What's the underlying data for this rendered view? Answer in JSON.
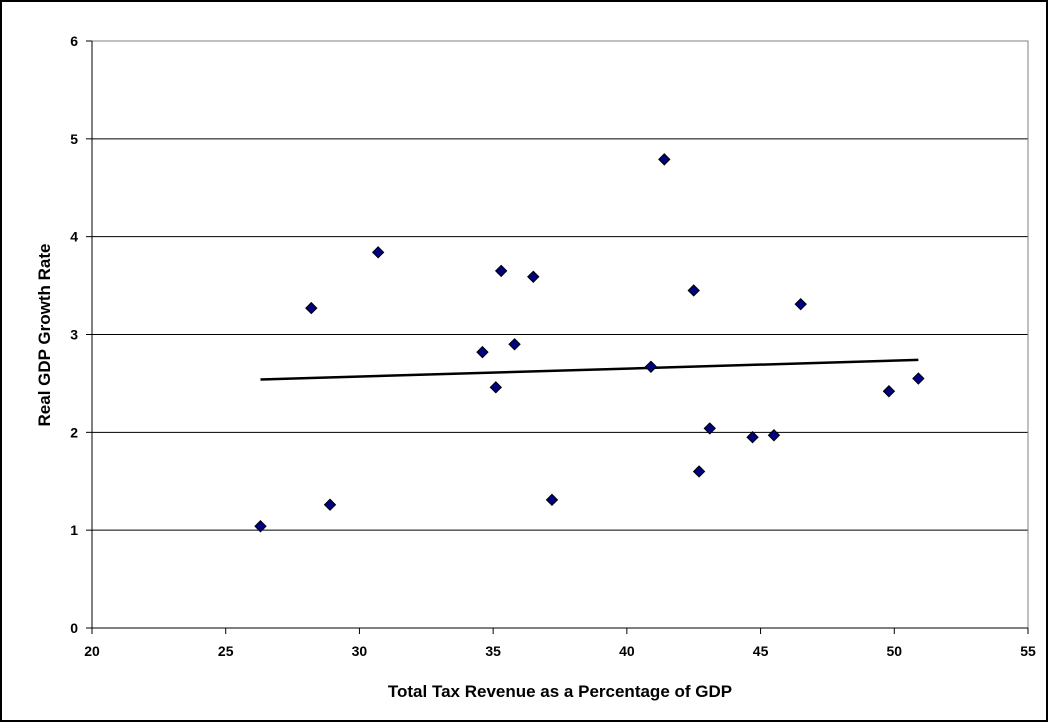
{
  "chart_data": {
    "type": "scatter",
    "title": "",
    "xlabel": "Total Tax Revenue as a Percentage of GDP",
    "ylabel": "Real GDP Growth Rate",
    "xlim": [
      20,
      55
    ],
    "ylim": [
      0,
      6
    ],
    "xticks": [
      20,
      25,
      30,
      35,
      40,
      45,
      50,
      55
    ],
    "yticks": [
      0,
      1,
      2,
      3,
      4,
      5,
      6
    ],
    "grid": "horizontal",
    "legend": "none",
    "marker_color": "#000080",
    "series": [
      {
        "x": [
          26.3,
          28.2,
          28.9,
          30.7,
          34.6,
          35.1,
          35.3,
          35.8,
          36.5,
          37.2,
          40.9,
          41.4,
          42.5,
          42.7,
          43.1,
          44.7,
          45.5,
          46.5,
          49.8,
          50.9
        ],
        "y": [
          1.04,
          3.27,
          1.26,
          3.84,
          2.82,
          2.46,
          3.65,
          2.9,
          3.59,
          1.31,
          2.67,
          4.79,
          3.45,
          1.6,
          2.04,
          1.95,
          1.97,
          3.31,
          2.42,
          2.55
        ]
      }
    ],
    "trendline": {
      "x": [
        26.3,
        50.9
      ],
      "y": [
        2.54,
        2.74
      ]
    }
  }
}
